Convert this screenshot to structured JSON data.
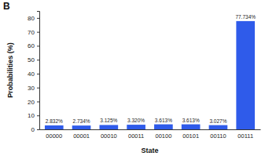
{
  "chart_data": {
    "type": "bar",
    "title": "B",
    "x_label": "State",
    "y_label": "Probabilities (%)",
    "categories": [
      "00000",
      "00001",
      "00010",
      "00011",
      "00100",
      "00101",
      "00110",
      "00111"
    ],
    "values": [
      2.832,
      2.734,
      3.125,
      3.32,
      3.613,
      3.613,
      3.027,
      77.734
    ],
    "value_labels": [
      "2.832%",
      "2.734%",
      "3.125%",
      "3.320%",
      "3.613%",
      "3.613%",
      "3.027%",
      "77.734%"
    ],
    "data_labels": true,
    "color": "#2f5bea",
    "ylim": [
      0,
      85
    ],
    "yticks": [
      0,
      10,
      20,
      30,
      40,
      50,
      60,
      70,
      80
    ],
    "grid": false
  }
}
